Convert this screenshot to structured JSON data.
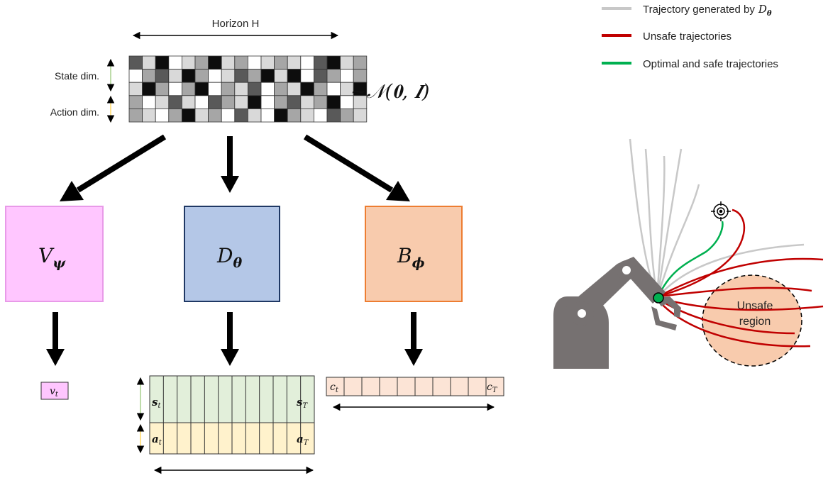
{
  "noise_block": {
    "horizon_label": "Horizon H",
    "state_label": "State dim.",
    "action_label": "Action dim.",
    "distribution": "~𝒩(𝟎, 𝑰)",
    "cells": [
      [
        3,
        1,
        4,
        0,
        1,
        2,
        4,
        1,
        2,
        0,
        1,
        2,
        1,
        0,
        3,
        4,
        1,
        2
      ],
      [
        0,
        2,
        3,
        1,
        4,
        2,
        0,
        1,
        3,
        2,
        4,
        1,
        4,
        0,
        3,
        2,
        0,
        2
      ],
      [
        1,
        4,
        2,
        0,
        2,
        4,
        0,
        2,
        1,
        3,
        0,
        2,
        1,
        4,
        2,
        0,
        1,
        4
      ],
      [
        2,
        0,
        1,
        3,
        1,
        0,
        3,
        2,
        1,
        4,
        0,
        2,
        3,
        1,
        2,
        4,
        0,
        1
      ],
      [
        2,
        1,
        0,
        2,
        4,
        1,
        2,
        0,
        3,
        1,
        0,
        4,
        2,
        1,
        0,
        3,
        2,
        1
      ]
    ],
    "cell_shades": [
      "#ffffff",
      "#d9d9d9",
      "#a6a6a6",
      "#595959",
      "#0d0d0d"
    ]
  },
  "models": {
    "value": {
      "base": "V",
      "sub": "ψ"
    },
    "diffusion": {
      "base": "D",
      "sub": "θ"
    },
    "barrier": {
      "base": "B",
      "sub": "ϕ"
    }
  },
  "outputs": {
    "value": {
      "base": "v",
      "sub": "t"
    },
    "traj_state_first": {
      "base": "s",
      "sub": "t"
    },
    "traj_state_last": {
      "base": "s",
      "sub": "T"
    },
    "traj_action_first": {
      "base": "a",
      "sub": "t"
    },
    "traj_action_last": {
      "base": "a",
      "sub": "T"
    },
    "cost_first": {
      "base": "c",
      "sub": "t"
    },
    "cost_last": {
      "base": "c",
      "sub": "T"
    },
    "traj_columns": 12,
    "cost_columns": 10
  },
  "legend": {
    "generated": {
      "text": "Trajectory generated by",
      "base": "D",
      "sub": "θ"
    },
    "unsafe": "Unsafe trajectories",
    "optimal": "Optimal and safe trajectories"
  },
  "scene": {
    "unsafe_region_line1": "Unsafe",
    "unsafe_region_line2": "region"
  },
  "colors": {
    "value_box": "#ffc6ff",
    "value_border": "#e89ae8",
    "diffusion_box": "#b4c7e7",
    "diffusion_border": "#1f3864",
    "barrier_box": "#f8cbad",
    "barrier_border": "#ed7d31",
    "state_row": "#e2efda",
    "action_row": "#fff2cc",
    "cost_row": "#fce4d6",
    "generated_line": "#c8c8c8",
    "unsafe_line": "#c00000",
    "optimal_line": "#00b050",
    "robot": "#767171",
    "unsafe_region": "#f8cbad"
  }
}
